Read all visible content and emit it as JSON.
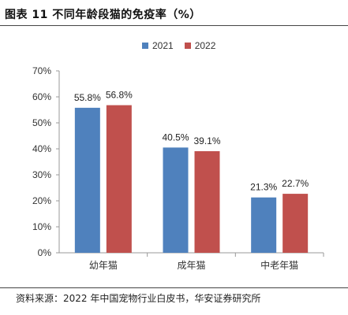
{
  "figure": {
    "title": "图表 11 不同年龄段猫的免疫率（%）",
    "source": "资料来源：2022 年中国宠物行业白皮书，华安证券研究所"
  },
  "colors": {
    "series_2021": "#4f81bd",
    "series_2022": "#c0504d",
    "axis": "#999999"
  },
  "chart_data": {
    "type": "bar",
    "categories": [
      "幼年猫",
      "成年猫",
      "中老年猫"
    ],
    "series": [
      {
        "name": "2021",
        "values": [
          55.8,
          40.5,
          21.3
        ],
        "labels": [
          "55.8%",
          "40.5%",
          "21.3%"
        ]
      },
      {
        "name": "2022",
        "values": [
          56.8,
          39.1,
          22.7
        ],
        "labels": [
          "56.8%",
          "39.1%",
          "22.7%"
        ]
      }
    ],
    "ylim": [
      0,
      70
    ],
    "yticks": [
      0,
      10,
      20,
      30,
      40,
      50,
      60,
      70
    ],
    "ytick_labels": [
      "0%",
      "10%",
      "20%",
      "30%",
      "40%",
      "50%",
      "60%",
      "70%"
    ],
    "title": "",
    "xlabel": "",
    "ylabel": "",
    "grid": false,
    "legend": "top-center"
  }
}
